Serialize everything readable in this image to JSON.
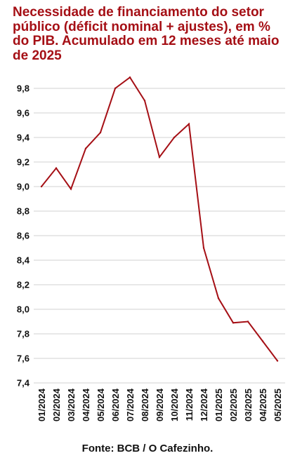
{
  "chart_data": {
    "type": "line",
    "title": "Necessidade de financiamento do setor público (déficit nominal + ajustes), em % do PIB. Acumulado em 12 meses até maio de 2025",
    "xlabel": "",
    "ylabel": "",
    "categories": [
      "01/2024",
      "02/2024",
      "03/2024",
      "04/2024",
      "05/2024",
      "06/2024",
      "07/2024",
      "08/2024",
      "09/2024",
      "10/2024",
      "11/2024",
      "12/2024",
      "01/2025",
      "02/2025",
      "03/2025",
      "04/2025",
      "05/2025"
    ],
    "series": [
      {
        "name": "",
        "values": [
          9.0,
          9.15,
          8.98,
          9.31,
          9.44,
          9.8,
          9.89,
          9.7,
          9.24,
          9.4,
          9.51,
          8.5,
          8.09,
          7.89,
          7.9,
          7.74,
          7.58
        ]
      }
    ],
    "ylim": [
      7.4,
      9.8
    ],
    "yticks": [
      "9,8",
      "9,6",
      "9,4",
      "9,2",
      "9,0",
      "8,8",
      "8,6",
      "8,4",
      "8,2",
      "8,0",
      "7,8",
      "7,6",
      "7,4"
    ],
    "grid": true,
    "line_color": "#a50f15",
    "title_color": "#a50f15",
    "source": "Fonte: BCB / O Cafezinho."
  }
}
